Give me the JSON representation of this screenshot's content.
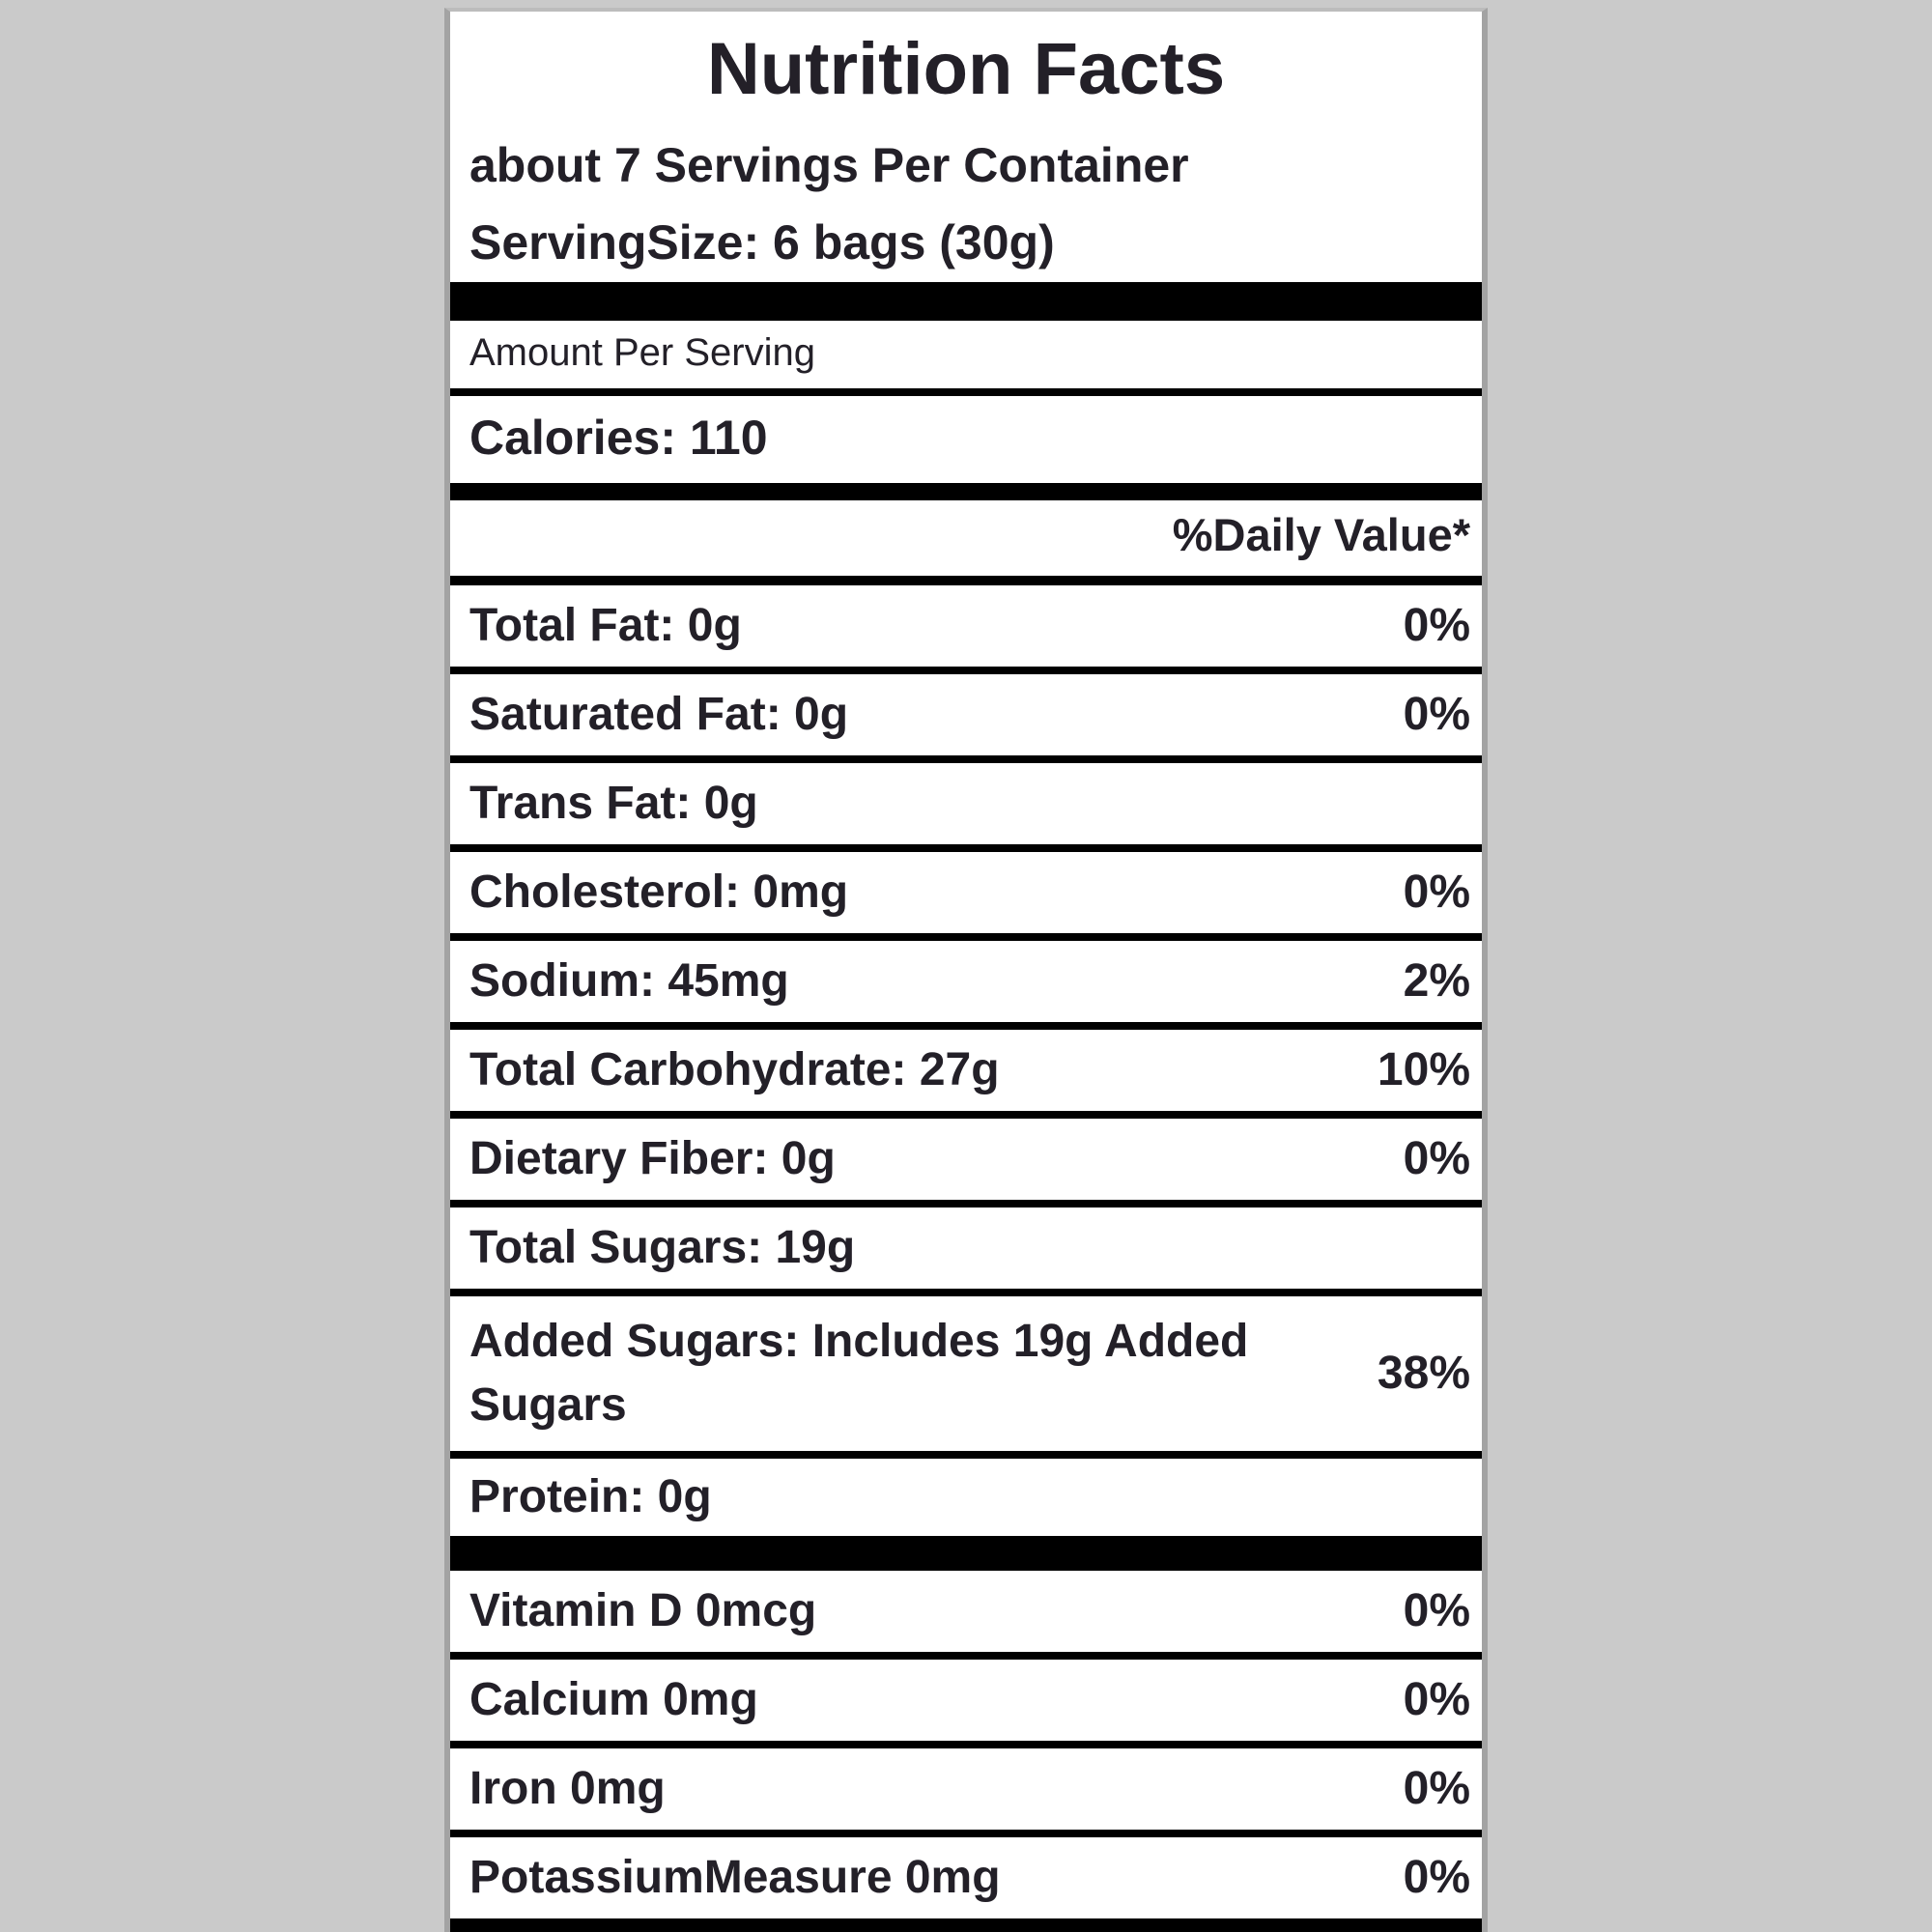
{
  "label": {
    "title": "Nutrition Facts",
    "servings_per_container": "about 7 Servings Per Container",
    "serving_size": "ServingSize: 6 bags (30g)",
    "amount_per_serving": "Amount Per Serving",
    "calories": "Calories: 110",
    "daily_value_header": "%Daily Value*",
    "nutrients": [
      {
        "name": "Total Fat: 0g",
        "daily_value": "0%"
      },
      {
        "name": "Saturated Fat: 0g",
        "daily_value": "0%"
      },
      {
        "name": "Trans Fat: 0g",
        "daily_value": ""
      },
      {
        "name": "Cholesterol: 0mg",
        "daily_value": "0%"
      },
      {
        "name": "Sodium: 45mg",
        "daily_value": "2%"
      },
      {
        "name": "Total Carbohydrate: 27g",
        "daily_value": "10%"
      },
      {
        "name": "Dietary Fiber: 0g",
        "daily_value": "0%"
      },
      {
        "name": "Total Sugars: 19g",
        "daily_value": ""
      },
      {
        "name": "Added Sugars: Includes 19g Added Sugars",
        "daily_value": "38%"
      },
      {
        "name": "Protein: 0g",
        "daily_value": ""
      }
    ],
    "micronutrients": [
      {
        "name": "Vitamin D 0mcg",
        "daily_value": "0%"
      },
      {
        "name": "Calcium 0mg",
        "daily_value": "0%"
      },
      {
        "name": "Iron 0mg",
        "daily_value": "0%"
      },
      {
        "name": "PotassiumMeasure 0mg",
        "daily_value": "0%"
      }
    ]
  },
  "colors": {
    "page_background": "#cacaca",
    "label_background": "#ffffff",
    "label_border": "#a3a3a3",
    "rule_color": "#000000",
    "text_color": "#232028"
  }
}
